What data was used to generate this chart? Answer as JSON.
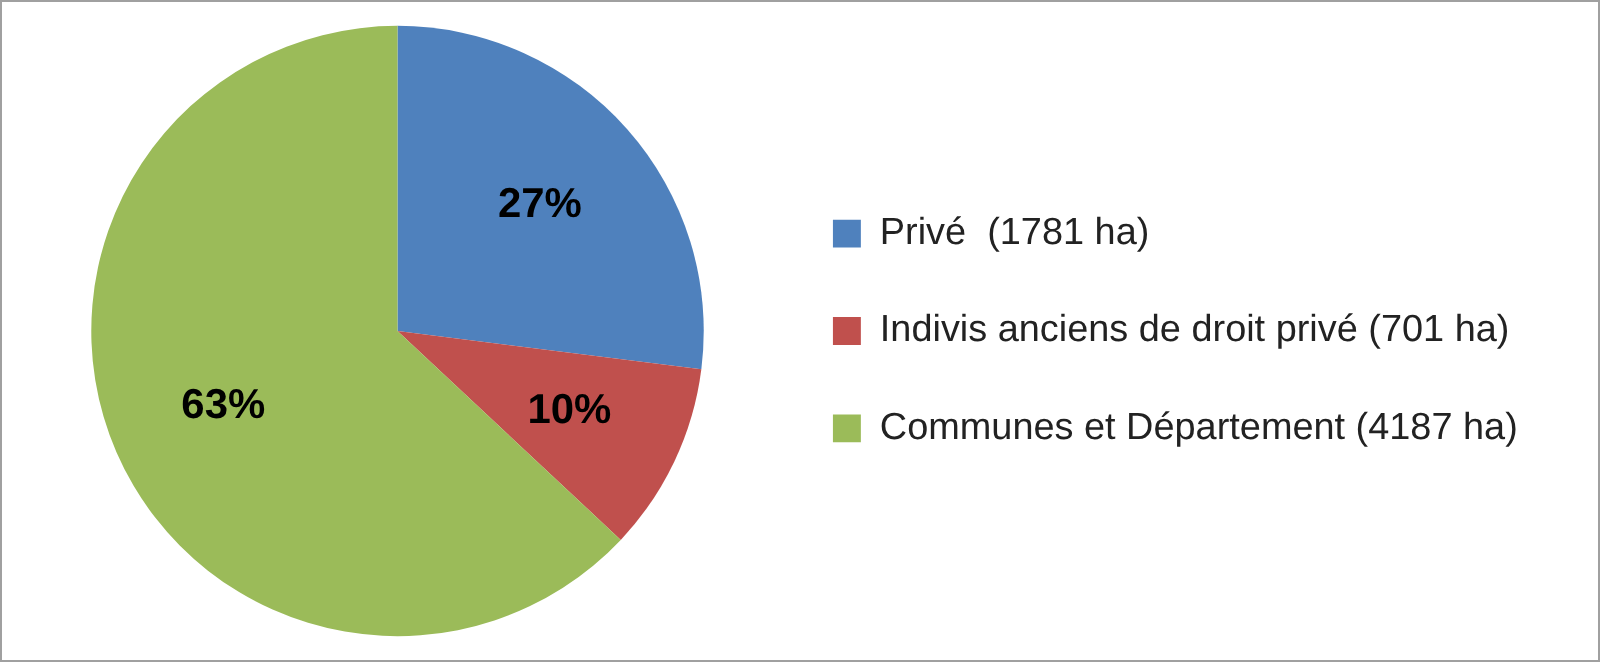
{
  "chart_data": {
    "type": "pie",
    "categories": [
      "Privé  (1781 ha)",
      "Indivis anciens de droit privé (701 ha)",
      "Communes et Département (4187 ha)"
    ],
    "values": [
      27,
      10,
      63
    ],
    "value_labels": [
      "27%",
      "10%",
      "63%"
    ],
    "colors": [
      "#4f81bd",
      "#c0504d",
      "#9bbb59"
    ],
    "legend": "right"
  }
}
